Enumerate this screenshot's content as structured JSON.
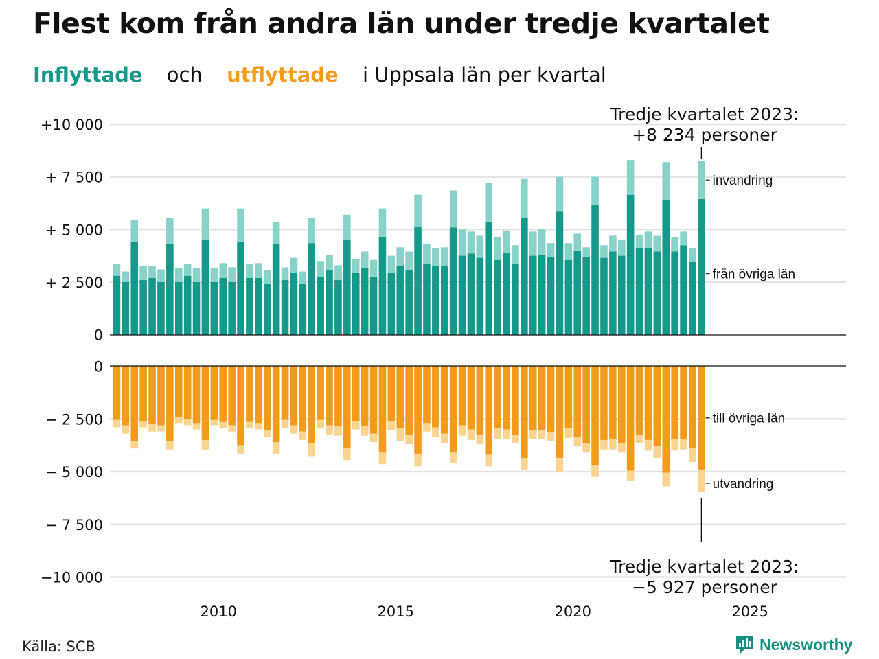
{
  "title": "Flest kom från andra län under tredje kvartalet",
  "subtitle": {
    "part1": "Inflyttade",
    "part2": "och",
    "part3": "utflyttade",
    "part4": "i Uppsala län per kvartal"
  },
  "source": "Källa: SCB",
  "brand": {
    "name": "Newsworthy",
    "icon": "newsworthy-logo-icon"
  },
  "colors": {
    "in_domestic": "#14998a",
    "in_immigration": "#88d3c9",
    "out_domestic": "#f39c1b",
    "out_emigration": "#fbd58f",
    "grid": "#e3e3e3",
    "baseline": "#111111"
  },
  "chart_data": {
    "type": "bar",
    "layout": "diverging stacked bar, inflows above and outflows below",
    "grid": true,
    "x_ticks": [
      "2010",
      "2015",
      "2020",
      "2025"
    ],
    "x_range": [
      2007,
      2028
    ],
    "y_ticks_top": [
      {
        "value": 10000,
        "label": "+10 000"
      },
      {
        "value": 7500,
        "label": "+ 7 500"
      },
      {
        "value": 5000,
        "label": "+ 5 000"
      },
      {
        "value": 2500,
        "label": "+ 2 500"
      },
      {
        "value": 0,
        "label": "0"
      }
    ],
    "y_ticks_bottom": [
      {
        "value": 0,
        "label": "0"
      },
      {
        "value": -2500,
        "label": "− 2 500"
      },
      {
        "value": -5000,
        "label": "− 5 000"
      },
      {
        "value": -7500,
        "label": "− 7 500"
      },
      {
        "value": -10000,
        "label": "−10 000"
      }
    ],
    "ylim_top": [
      0,
      10000
    ],
    "ylim_bottom": [
      -10000,
      0
    ],
    "series_labels": {
      "in_immigration": "invandring",
      "in_domestic": "från övriga län",
      "out_domestic": "till övriga län",
      "out_emigration": "utvandring"
    },
    "annotations": {
      "top": {
        "line1": "Tredje kvartalet 2023:",
        "line2": "+8 234 personer"
      },
      "bottom": {
        "line1": "Tredje kvartalet 2023:",
        "line2": "−5 927 personer"
      }
    },
    "quarters": [
      "2007K1",
      "2007K2",
      "2007K3",
      "2007K4",
      "2008K1",
      "2008K2",
      "2008K3",
      "2008K4",
      "2009K1",
      "2009K2",
      "2009K3",
      "2009K4",
      "2010K1",
      "2010K2",
      "2010K3",
      "2010K4",
      "2011K1",
      "2011K2",
      "2011K3",
      "2011K4",
      "2012K1",
      "2012K2",
      "2012K3",
      "2012K4",
      "2013K1",
      "2013K2",
      "2013K3",
      "2013K4",
      "2014K1",
      "2014K2",
      "2014K3",
      "2014K4",
      "2015K1",
      "2015K2",
      "2015K3",
      "2015K4",
      "2016K1",
      "2016K2",
      "2016K3",
      "2016K4",
      "2017K1",
      "2017K2",
      "2017K3",
      "2017K4",
      "2018K1",
      "2018K2",
      "2018K3",
      "2018K4",
      "2019K1",
      "2019K2",
      "2019K3",
      "2019K4",
      "2020K1",
      "2020K2",
      "2020K3",
      "2020K4",
      "2021K1",
      "2021K2",
      "2021K3",
      "2021K4",
      "2022K1",
      "2022K2",
      "2022K3",
      "2022K4",
      "2023K1",
      "2023K2",
      "2023K3"
    ],
    "series": [
      {
        "key": "in_domestic",
        "values": [
          2800,
          2500,
          4400,
          2600,
          2700,
          2500,
          4300,
          2500,
          2800,
          2500,
          4500,
          2500,
          2700,
          2500,
          4400,
          2700,
          2700,
          2400,
          4300,
          2600,
          2950,
          2400,
          4350,
          2750,
          3050,
          2600,
          4500,
          2950,
          3150,
          2750,
          4650,
          2950,
          3250,
          3050,
          5150,
          3350,
          3250,
          3250,
          5100,
          3750,
          3850,
          3650,
          5350,
          3550,
          3900,
          3350,
          5550,
          3750,
          3800,
          3700,
          5850,
          3550,
          4000,
          3700,
          6150,
          3650,
          3950,
          3750,
          6650,
          4100,
          4100,
          3950,
          6400,
          3950,
          4250,
          3450,
          6450
        ]
      },
      {
        "key": "in_immigration",
        "values": [
          550,
          500,
          1050,
          650,
          550,
          600,
          1250,
          650,
          550,
          650,
          1500,
          650,
          700,
          700,
          1600,
          650,
          700,
          650,
          1050,
          600,
          700,
          600,
          1200,
          750,
          750,
          700,
          1200,
          650,
          800,
          800,
          1350,
          800,
          900,
          900,
          1500,
          950,
          850,
          900,
          1750,
          1250,
          1050,
          1050,
          1850,
          1100,
          1050,
          900,
          1850,
          1150,
          1200,
          650,
          1650,
          800,
          800,
          450,
          1350,
          600,
          750,
          750,
          1650,
          650,
          800,
          750,
          1800,
          700,
          650,
          650,
          1800
        ]
      },
      {
        "key": "out_domestic",
        "values": [
          -2550,
          -2800,
          -3550,
          -2600,
          -2750,
          -2800,
          -3550,
          -2400,
          -2500,
          -2700,
          -3500,
          -2550,
          -2650,
          -2800,
          -3750,
          -2650,
          -2700,
          -3050,
          -3600,
          -2550,
          -2800,
          -3100,
          -3650,
          -2550,
          -2800,
          -2850,
          -3900,
          -2600,
          -2850,
          -3200,
          -4100,
          -2600,
          -2950,
          -3250,
          -4150,
          -2700,
          -2900,
          -3200,
          -4100,
          -2800,
          -3000,
          -3250,
          -4200,
          -2950,
          -3000,
          -3250,
          -4350,
          -3050,
          -3050,
          -3150,
          -4350,
          -2950,
          -3350,
          -3650,
          -4700,
          -3500,
          -3450,
          -3650,
          -4950,
          -3250,
          -3500,
          -3800,
          -5050,
          -3450,
          -3450,
          -3900,
          -4900
        ]
      },
      {
        "key": "out_emigration",
        "values": [
          -350,
          -400,
          -350,
          -300,
          -350,
          -300,
          -400,
          -300,
          -300,
          -300,
          -450,
          -250,
          -300,
          -300,
          -400,
          -300,
          -300,
          -300,
          -550,
          -400,
          -400,
          -400,
          -650,
          -400,
          -450,
          -450,
          -550,
          -400,
          -450,
          -400,
          -550,
          -450,
          -600,
          -450,
          -600,
          -400,
          -450,
          -450,
          -500,
          -500,
          -500,
          -450,
          -550,
          -500,
          -450,
          -400,
          -550,
          -400,
          -400,
          -400,
          -650,
          -450,
          -450,
          -450,
          -550,
          -450,
          -500,
          -450,
          -500,
          -400,
          -500,
          -550,
          -650,
          -550,
          -500,
          -650,
          -1050
        ]
      }
    ]
  }
}
